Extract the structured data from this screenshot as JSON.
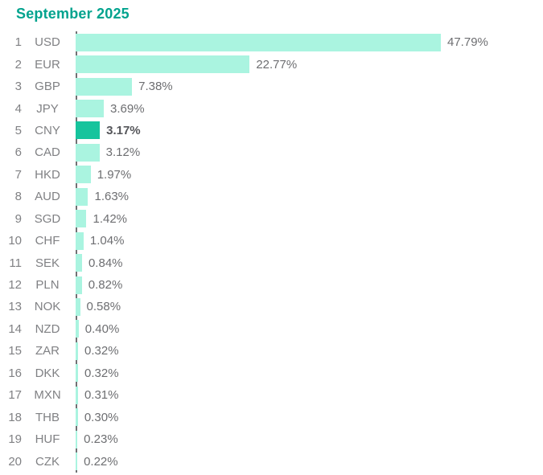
{
  "title": "September 2025",
  "colors": {
    "title_text": "#00A38E",
    "bar_default": "#AAF4E0",
    "bar_highlight": "#16C49D",
    "axis_line": "#707173",
    "rank_text": "#808184",
    "code_text": "#808184",
    "value_text": "#6D6E71",
    "value_highlight_text": "#55565A",
    "background": "#FFFFFF"
  },
  "chart_data": {
    "type": "bar",
    "orientation": "horizontal",
    "title": "September 2025",
    "xlabel": "",
    "ylabel": "",
    "xlim": [
      0,
      50
    ],
    "grid": false,
    "legend": false,
    "highlight_category": "CNY",
    "ranks": [
      1,
      2,
      3,
      4,
      5,
      6,
      7,
      8,
      9,
      10,
      11,
      12,
      13,
      14,
      15,
      16,
      17,
      18,
      19,
      20
    ],
    "categories": [
      "USD",
      "EUR",
      "GBP",
      "JPY",
      "CNY",
      "CAD",
      "HKD",
      "AUD",
      "SGD",
      "CHF",
      "SEK",
      "PLN",
      "NOK",
      "NZD",
      "ZAR",
      "DKK",
      "MXN",
      "THB",
      "HUF",
      "CZK"
    ],
    "values": [
      47.79,
      22.77,
      7.38,
      3.69,
      3.17,
      3.12,
      1.97,
      1.63,
      1.42,
      1.04,
      0.84,
      0.82,
      0.58,
      0.4,
      0.32,
      0.32,
      0.31,
      0.3,
      0.23,
      0.22
    ],
    "labels": [
      "47.79%",
      "22.77%",
      "7.38%",
      "3.69%",
      "3.17%",
      "3.12%",
      "1.97%",
      "1.63%",
      "1.42%",
      "1.04%",
      "0.84%",
      "0.82%",
      "0.58%",
      "0.40%",
      "0.32%",
      "0.32%",
      "0.31%",
      "0.30%",
      "0.23%",
      "0.22%"
    ]
  }
}
